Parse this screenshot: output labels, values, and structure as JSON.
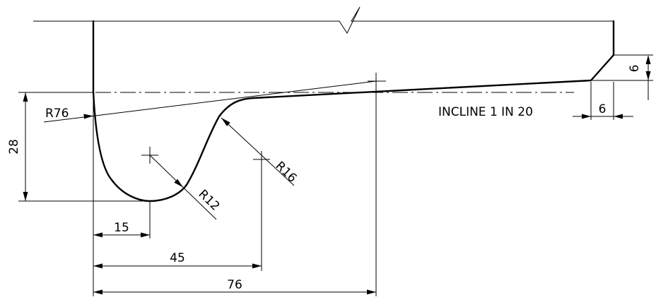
{
  "dimensions": {
    "height_28": "28",
    "dim_15": "15",
    "dim_45": "45",
    "dim_76": "76",
    "chamfer_height": "6",
    "chamfer_width": "6"
  },
  "radii": {
    "r76": "R76",
    "r12": "R12",
    "r16": "R16"
  },
  "notes": {
    "incline": "INCLINE 1 IN 20"
  }
}
